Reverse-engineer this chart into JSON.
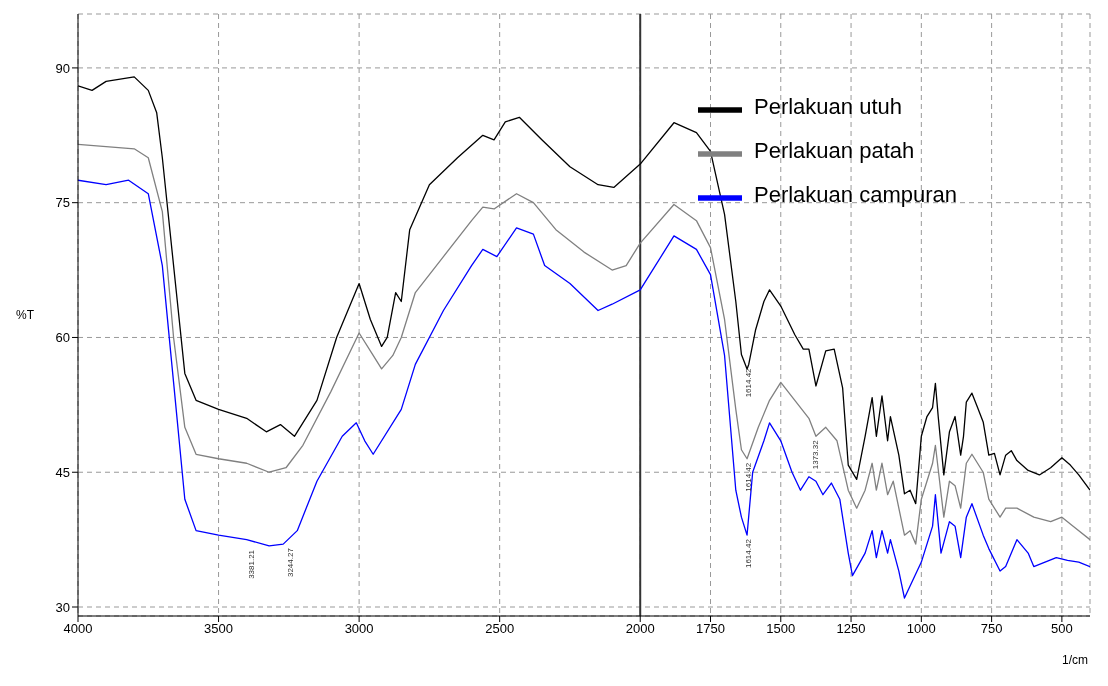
{
  "chart_data": {
    "type": "line",
    "ylabel": "%T",
    "xlabel": "1/cm",
    "xlim": [
      4000,
      400
    ],
    "xticks": [
      4000,
      3500,
      3000,
      2500,
      2000,
      1750,
      1500,
      1250,
      1000,
      750,
      500
    ],
    "ylim": [
      29,
      96
    ],
    "yticks": [
      30,
      45,
      60,
      75,
      90
    ],
    "grid": true,
    "legend": "top right",
    "line_style": "solid",
    "marker": "none",
    "series": [
      {
        "name": "Perlakuan utuh",
        "color": "#000000",
        "x": [
          4000,
          3950,
          3900,
          3800,
          3750,
          3720,
          3700,
          3650,
          3620,
          3580,
          3500,
          3400,
          3330,
          3280,
          3230,
          3150,
          3080,
          3000,
          2960,
          2920,
          2900,
          2870,
          2850,
          2820,
          2750,
          2650,
          2560,
          2520,
          2480,
          2430,
          2350,
          2250,
          2150,
          2094,
          2000,
          1880,
          1800,
          1750,
          1700,
          1660,
          1640,
          1620,
          1614,
          1590,
          1560,
          1540,
          1500,
          1450,
          1420,
          1400,
          1375,
          1340,
          1310,
          1280,
          1260,
          1230,
          1200,
          1175,
          1160,
          1140,
          1120,
          1110,
          1080,
          1060,
          1040,
          1020,
          1000,
          980,
          960,
          950,
          940,
          920,
          900,
          880,
          860,
          850,
          840,
          820,
          800,
          780,
          760,
          740,
          720,
          700,
          680,
          660,
          620,
          580,
          540,
          500,
          470,
          440,
          400
        ],
        "values": [
          88,
          87.5,
          88.5,
          89,
          87.5,
          85,
          80,
          65,
          56,
          53,
          52,
          51,
          49.5,
          50.3,
          49,
          53,
          60,
          66,
          62,
          59,
          60,
          65,
          64,
          72,
          77,
          80,
          82.5,
          82,
          84,
          84.5,
          82,
          79,
          77,
          76.7,
          79.3,
          83.9,
          82.8,
          80.7,
          73.7,
          64,
          58.1,
          56.5,
          57,
          60.8,
          64,
          65.3,
          63.5,
          60.3,
          58.7,
          58.7,
          54.6,
          58.5,
          58.7,
          54.4,
          45.8,
          44.2,
          49,
          53.3,
          49,
          53.5,
          48.5,
          51.2,
          46.9,
          42.6,
          43,
          41.5,
          49,
          51.2,
          52.2,
          54.9,
          51.2,
          44.7,
          49.5,
          51.2,
          46.9,
          49,
          52.8,
          53.8,
          52.2,
          50.6,
          46.9,
          47.1,
          44.7,
          46.9,
          47.4,
          46.3,
          45.2,
          44.7,
          45.5,
          46.6,
          45.8,
          44.7,
          43
        ]
      },
      {
        "name": "Perlakuan patah",
        "color": "#808080",
        "x": [
          4000,
          3800,
          3750,
          3700,
          3660,
          3620,
          3580,
          3500,
          3400,
          3320,
          3260,
          3200,
          3100,
          3000,
          2950,
          2920,
          2880,
          2850,
          2800,
          2700,
          2600,
          2560,
          2520,
          2440,
          2380,
          2300,
          2200,
          2100,
          2050,
          2000,
          1880,
          1800,
          1750,
          1700,
          1660,
          1640,
          1620,
          1580,
          1540,
          1500,
          1450,
          1400,
          1375,
          1340,
          1300,
          1260,
          1230,
          1200,
          1175,
          1160,
          1140,
          1120,
          1100,
          1060,
          1040,
          1020,
          1000,
          960,
          950,
          920,
          900,
          880,
          860,
          840,
          820,
          780,
          760,
          720,
          700,
          660,
          600,
          540,
          500,
          460,
          400
        ],
        "values": [
          81.5,
          81,
          80,
          74,
          60,
          50,
          47,
          46.5,
          46,
          45,
          45.5,
          48,
          54,
          60.5,
          58,
          56.5,
          58,
          60,
          65,
          69,
          73,
          74.5,
          74.3,
          76,
          75,
          72,
          69.5,
          67.5,
          68,
          70.5,
          74.8,
          73,
          70,
          62,
          52,
          47.5,
          46.5,
          50,
          53,
          55,
          53,
          51,
          49,
          50,
          48.5,
          43,
          41,
          43,
          46,
          43,
          46,
          42.5,
          44,
          38,
          38.5,
          37,
          42,
          46,
          48,
          40,
          44,
          43.5,
          41,
          46,
          47,
          45,
          42,
          40,
          41,
          41,
          40,
          39.5,
          40,
          39,
          37.5
        ]
      },
      {
        "name": "Perlakuan campuran",
        "color": "#0000ff",
        "x": [
          4000,
          3900,
          3820,
          3750,
          3700,
          3660,
          3620,
          3580,
          3500,
          3400,
          3320,
          3270,
          3220,
          3150,
          3060,
          3010,
          2980,
          2950,
          2850,
          2800,
          2700,
          2600,
          2560,
          2510,
          2440,
          2380,
          2340,
          2250,
          2150,
          2100,
          2000,
          1880,
          1800,
          1750,
          1700,
          1660,
          1640,
          1620,
          1600,
          1560,
          1540,
          1500,
          1460,
          1430,
          1400,
          1375,
          1350,
          1320,
          1290,
          1260,
          1245,
          1200,
          1175,
          1160,
          1140,
          1120,
          1110,
          1080,
          1060,
          1000,
          960,
          950,
          930,
          900,
          880,
          860,
          840,
          820,
          780,
          760,
          720,
          700,
          660,
          620,
          600,
          520,
          480,
          440,
          400
        ],
        "values": [
          77.5,
          77,
          77.5,
          76,
          68,
          55,
          42,
          38.5,
          38,
          37.5,
          36.8,
          37,
          38.5,
          44,
          49,
          50.5,
          48.5,
          47,
          52,
          57,
          63,
          68,
          69.8,
          69,
          72.2,
          71.5,
          68,
          66,
          63,
          63.7,
          65.3,
          71.3,
          69.8,
          67,
          58,
          43,
          40,
          38,
          45,
          48.5,
          50.5,
          48.5,
          45,
          43,
          44.5,
          44,
          42.5,
          43.8,
          42,
          36,
          33.5,
          36,
          38.5,
          35.5,
          38.5,
          36,
          37.5,
          34,
          31,
          35,
          39,
          42.5,
          36,
          39.5,
          39,
          35.5,
          40,
          41.5,
          38,
          36.5,
          34,
          34.5,
          37.5,
          36,
          34.5,
          35.5,
          35.2,
          35,
          34.5
        ]
      }
    ],
    "ref_lines": [
      {
        "axis": "x",
        "value": 2000,
        "color": "#333333",
        "line_style": "solid"
      }
    ],
    "annotations": [
      {
        "text": "1614.42",
        "x": 1614,
        "y": 57
      },
      {
        "text": "1614.42",
        "x": 1614,
        "y": 46.5
      },
      {
        "text": "1614.42",
        "x": 1614,
        "y": 38
      },
      {
        "text": "1373.32",
        "x": 1375,
        "y": 49
      },
      {
        "text": "3381.21",
        "x": 3381,
        "y": 36.8
      },
      {
        "text": "3244.27",
        "x": 3244,
        "y": 37
      }
    ]
  }
}
